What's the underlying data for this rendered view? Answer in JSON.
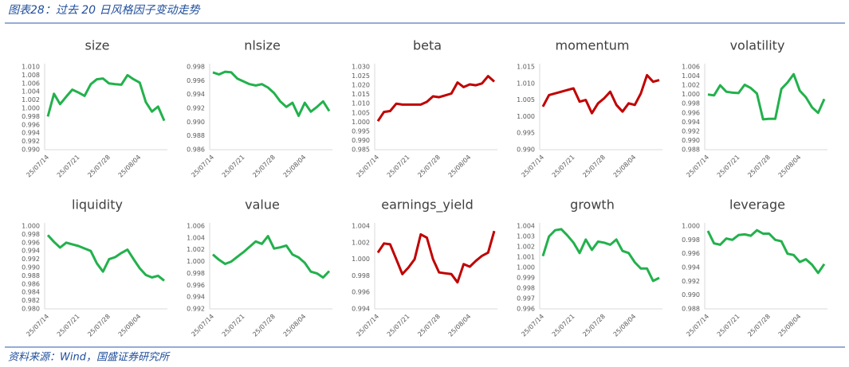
{
  "title": "图表28：过去 20 日风格因子变动走势",
  "source": "资料来源：Wind，国盛证券研究所",
  "chart_data": [
    {
      "type": "line",
      "title": "size",
      "color": "#22b14c",
      "categories": [
        "25/07/14",
        null,
        null,
        null,
        null,
        "25/07/21",
        null,
        null,
        null,
        null,
        "25/07/28",
        null,
        null,
        null,
        null,
        "25/08/04",
        null,
        null,
        null,
        null
      ],
      "values": [
        0.998,
        1.0035,
        1.001,
        1.0028,
        1.0045,
        1.0038,
        1.003,
        1.0058,
        1.007,
        1.0072,
        1.006,
        1.0058,
        1.0057,
        1.008,
        1.007,
        1.0062,
        1.0015,
        0.9992,
        1.0004,
        0.997
      ],
      "ylim": [
        0.99,
        1.01
      ],
      "yticks": [
        {
          "value": 1.01,
          "label": "1.010"
        },
        1.008,
        1.006,
        1.004,
        1.002,
        {
          "value": 1.0,
          "label": "1.000"
        },
        0.998,
        0.996,
        0.994,
        0.992,
        {
          "value": 0.99,
          "label": "0.990"
        }
      ]
    },
    {
      "type": "line",
      "title": "nlsize",
      "color": "#22b14c",
      "categories": [
        "25/07/14",
        null,
        null,
        null,
        null,
        "25/07/21",
        null,
        null,
        null,
        null,
        "25/07/28",
        null,
        null,
        null,
        null,
        "25/08/04",
        null,
        null,
        null,
        null
      ],
      "values": [
        0.9972,
        0.9969,
        0.9973,
        0.9972,
        0.9963,
        0.9959,
        0.9955,
        0.9953,
        0.9955,
        0.995,
        0.9942,
        0.993,
        0.9922,
        0.9928,
        0.9909,
        0.9928,
        0.9915,
        0.9922,
        0.993,
        0.9916
      ],
      "ylim": [
        0.986,
        0.998
      ],
      "yticks": [
        0.998,
        0.996,
        0.994,
        0.992,
        {
          "value": 0.99,
          "label": "0.990"
        },
        0.988,
        0.986
      ]
    },
    {
      "type": "line",
      "title": "beta",
      "color": "#c00000",
      "categories": [
        "25/07/14",
        null,
        null,
        null,
        null,
        "25/07/21",
        null,
        null,
        null,
        null,
        "25/07/28",
        null,
        null,
        null,
        null,
        "25/08/04",
        null,
        null,
        null,
        null
      ],
      "values": [
        1.0005,
        1.0055,
        1.006,
        1.01,
        1.0095,
        1.0095,
        1.0095,
        1.0095,
        1.011,
        1.014,
        1.0135,
        1.0145,
        1.0155,
        1.0215,
        1.019,
        1.0205,
        1.02,
        1.021,
        1.025,
        1.022
      ],
      "ylim": [
        0.985,
        1.03
      ],
      "yticks": [
        {
          "value": 1.03,
          "label": "1.030"
        },
        1.025,
        {
          "value": 1.02,
          "label": "1.020"
        },
        1.015,
        {
          "value": 1.01,
          "label": "1.010"
        },
        1.005,
        {
          "value": 1.0,
          "label": "1.000"
        },
        0.995,
        {
          "value": 0.99,
          "label": "0.990"
        },
        0.985
      ]
    },
    {
      "type": "line",
      "title": "momentum",
      "color": "#c00000",
      "categories": [
        "25/07/14",
        null,
        null,
        null,
        null,
        "25/07/21",
        null,
        null,
        null,
        null,
        "25/07/28",
        null,
        null,
        null,
        null,
        "25/08/04",
        null,
        null,
        null,
        null
      ],
      "values": [
        1.003,
        1.0065,
        1.007,
        1.0075,
        1.008,
        1.0085,
        1.0045,
        1.005,
        1.001,
        1.004,
        1.0055,
        1.0075,
        1.0035,
        1.0015,
        1.004,
        1.0035,
        1.007,
        1.0125,
        1.0105,
        1.011
      ],
      "ylim": [
        0.99,
        1.015
      ],
      "yticks": [
        1.015,
        {
          "value": 1.01,
          "label": "1.010"
        },
        1.005,
        {
          "value": 1.0,
          "label": "1.000"
        },
        0.995,
        {
          "value": 0.99,
          "label": "0.990"
        }
      ]
    },
    {
      "type": "line",
      "title": "volatility",
      "color": "#22b14c",
      "categories": [
        "25/07/14",
        null,
        null,
        null,
        null,
        "25/07/21",
        null,
        null,
        null,
        null,
        "25/07/28",
        null,
        null,
        null,
        null,
        "25/08/04",
        null,
        null,
        null,
        null
      ],
      "values": [
        1.0,
        0.9998,
        1.002,
        1.0006,
        1.0004,
        1.0003,
        1.0021,
        1.0014,
        1.0002,
        0.9946,
        0.9947,
        0.9947,
        1.0012,
        1.0026,
        1.0044,
        1.0008,
        0.9994,
        0.9972,
        0.996,
        0.999
      ],
      "ylim": [
        0.988,
        1.006
      ],
      "yticks": [
        1.006,
        1.004,
        1.002,
        {
          "value": 1.0,
          "label": "1.000"
        },
        0.998,
        0.996,
        0.994,
        0.992,
        {
          "value": 0.99,
          "label": "0.990"
        },
        0.988
      ]
    },
    {
      "type": "line",
      "title": "liquidity",
      "color": "#22b14c",
      "categories": [
        "25/07/14",
        null,
        null,
        null,
        null,
        "25/07/21",
        null,
        null,
        null,
        null,
        "25/07/28",
        null,
        null,
        null,
        null,
        "25/08/04",
        null,
        null,
        null,
        null
      ],
      "values": [
        0.9978,
        0.9962,
        0.9948,
        0.996,
        0.9956,
        0.9952,
        0.9946,
        0.994,
        0.991,
        0.989,
        0.992,
        0.9925,
        0.9935,
        0.9943,
        0.992,
        0.9898,
        0.9882,
        0.9876,
        0.988,
        0.9868
      ],
      "ylim": [
        0.98,
        1.0
      ],
      "yticks": [
        {
          "value": 1.0,
          "label": "1.000"
        },
        0.998,
        0.996,
        0.994,
        0.992,
        {
          "value": 0.99,
          "label": "0.990"
        },
        0.988,
        0.986,
        0.984,
        0.982,
        {
          "value": 0.98,
          "label": "0.980"
        }
      ]
    },
    {
      "type": "line",
      "title": "value",
      "color": "#22b14c",
      "categories": [
        "25/07/14",
        null,
        null,
        null,
        null,
        "25/07/21",
        null,
        null,
        null,
        null,
        "25/07/28",
        null,
        null,
        null,
        null,
        "25/08/04",
        null,
        null,
        null,
        null
      ],
      "values": [
        1.0012,
        1.0003,
        0.9996,
        1.0,
        1.0008,
        1.0016,
        1.0025,
        1.0034,
        1.003,
        1.0043,
        1.0022,
        1.0024,
        1.0027,
        1.0012,
        1.0007,
        0.9998,
        0.9983,
        0.998,
        0.9973,
        0.9984
      ],
      "ylim": [
        0.992,
        1.006
      ],
      "yticks": [
        1.006,
        1.004,
        1.002,
        {
          "value": 1.0,
          "label": "1.000"
        },
        0.998,
        0.996,
        0.994,
        0.992
      ]
    },
    {
      "type": "line",
      "title": "earnings_yield",
      "color": "#c00000",
      "categories": [
        "25/07/14",
        null,
        null,
        null,
        null,
        "25/07/21",
        null,
        null,
        null,
        null,
        "25/07/28",
        null,
        null,
        null,
        null,
        "25/08/04",
        null,
        null,
        null,
        null
      ],
      "values": [
        1.0008,
        1.0019,
        1.0018,
        1.0,
        0.9982,
        0.999,
        1.0,
        1.003,
        1.0026,
        1.0,
        0.9984,
        0.9983,
        0.9982,
        0.9972,
        0.9994,
        0.9991,
        0.9998,
        1.0004,
        1.0008,
        1.0034
      ],
      "ylim": [
        0.994,
        1.004
      ],
      "yticks": [
        1.004,
        1.002,
        {
          "value": 1.0,
          "label": "1.000"
        },
        0.998,
        0.996,
        0.994
      ]
    },
    {
      "type": "line",
      "title": "growth",
      "color": "#22b14c",
      "categories": [
        "25/07/14",
        null,
        null,
        null,
        null,
        "25/07/21",
        null,
        null,
        null,
        null,
        "25/07/28",
        null,
        null,
        null,
        null,
        "25/08/04",
        null,
        null,
        null,
        null
      ],
      "values": [
        1.0011,
        1.003,
        1.0036,
        1.0037,
        1.0031,
        1.0024,
        1.0014,
        1.0027,
        1.0017,
        1.0025,
        1.0024,
        1.0022,
        1.0027,
        1.0016,
        1.0014,
        1.0005,
        0.9999,
        0.9999,
        0.9987,
        0.999
      ],
      "ylim": [
        0.996,
        1.004
      ],
      "yticks": [
        1.004,
        1.003,
        1.002,
        1.001,
        {
          "value": 1.0,
          "label": "1.000"
        },
        0.999,
        0.998,
        0.997,
        0.996
      ]
    },
    {
      "type": "line",
      "title": "leverage",
      "color": "#22b14c",
      "categories": [
        "25/07/14",
        null,
        null,
        null,
        null,
        "25/07/21",
        null,
        null,
        null,
        null,
        "25/07/28",
        null,
        null,
        null,
        null,
        "25/08/04",
        null,
        null,
        null,
        null
      ],
      "values": [
        0.9993,
        0.9975,
        0.9973,
        0.9982,
        0.998,
        0.9987,
        0.9988,
        0.9986,
        0.9994,
        0.9989,
        0.9989,
        0.998,
        0.9978,
        0.996,
        0.9958,
        0.9948,
        0.9952,
        0.9944,
        0.9932,
        0.9945
      ],
      "ylim": [
        0.988,
        1.0
      ],
      "yticks": [
        {
          "value": 1.0,
          "label": "1.000"
        },
        0.998,
        0.996,
        0.994,
        0.992,
        {
          "value": 0.99,
          "label": "0.990"
        },
        0.988
      ]
    }
  ]
}
